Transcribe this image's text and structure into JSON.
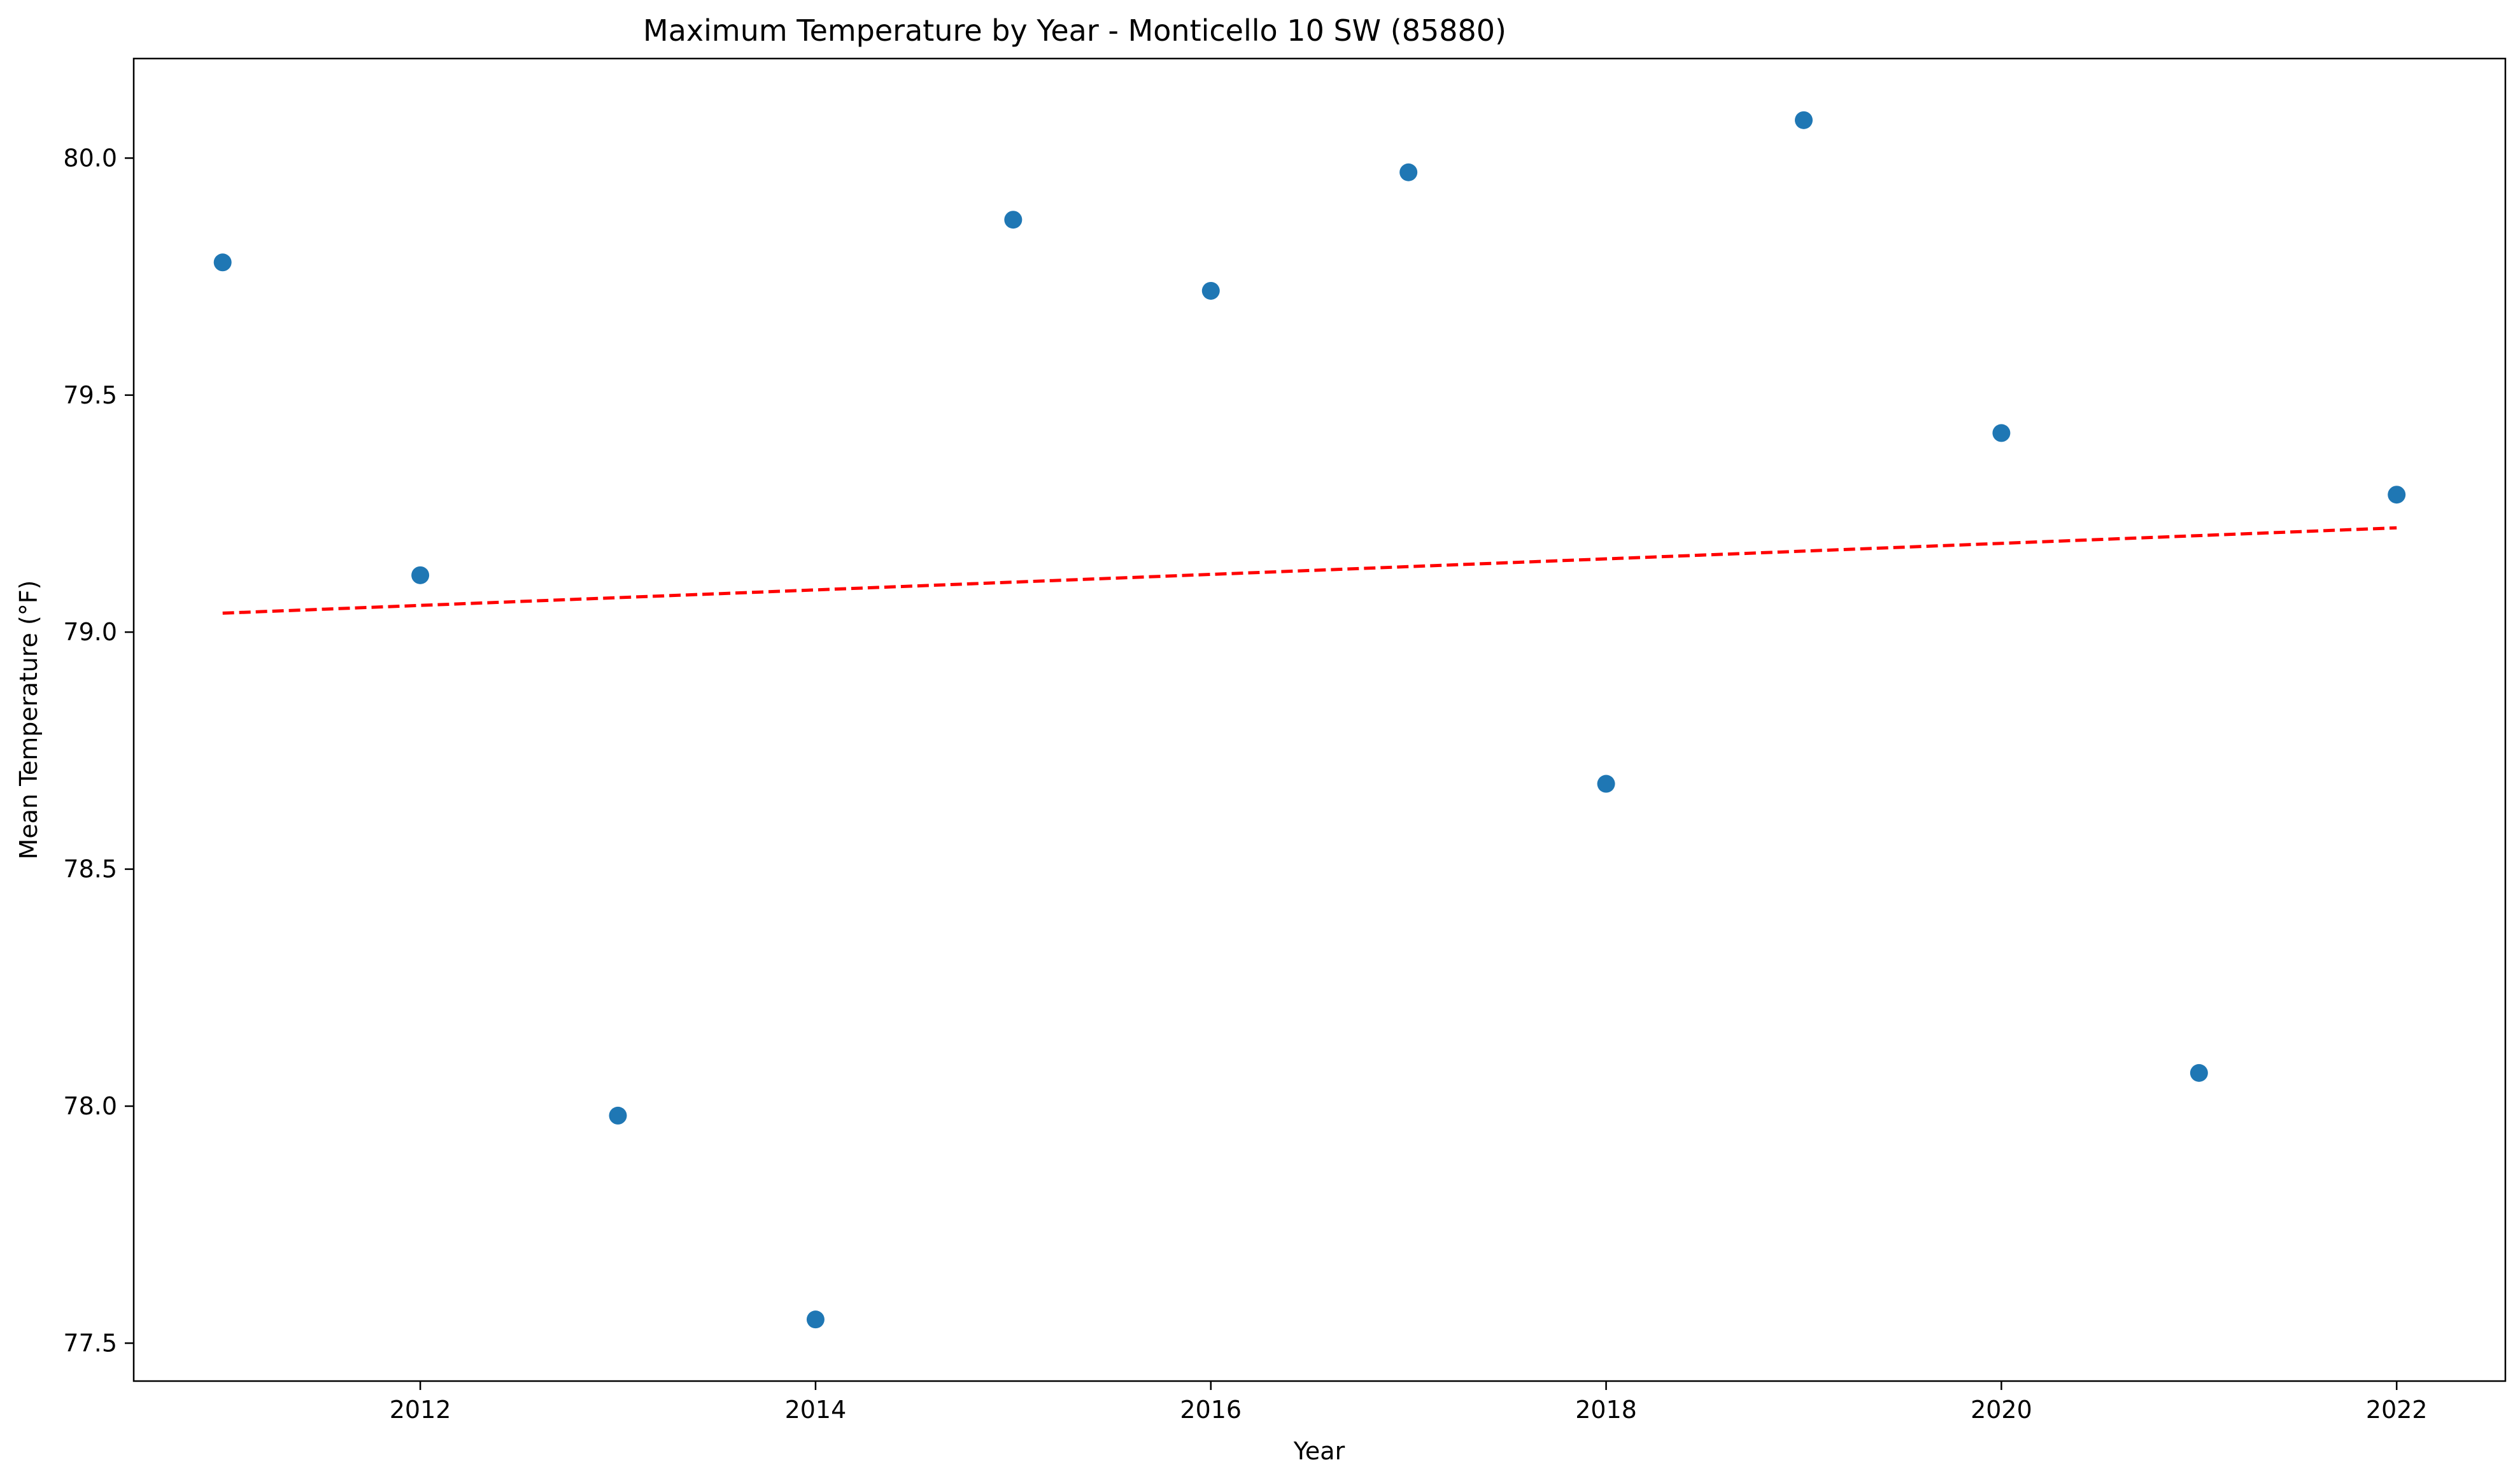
{
  "chart_data": {
    "type": "scatter",
    "title": "Maximum Temperature by Year - Monticello 10 SW (85880)",
    "xlabel": "Year",
    "ylabel": "Mean Temperature (°F)",
    "xlim": [
      2010.55,
      2022.55
    ],
    "ylim": [
      77.42,
      80.21
    ],
    "xticks": [
      2012,
      2014,
      2016,
      2018,
      2020,
      2022
    ],
    "xtick_labels": [
      "2012",
      "2014",
      "2016",
      "2018",
      "2020",
      "2022"
    ],
    "yticks": [
      77.5,
      78.0,
      78.5,
      79.0,
      79.5,
      80.0
    ],
    "ytick_labels": [
      "77.5",
      "78.0",
      "78.5",
      "79.0",
      "79.5",
      "80.0"
    ],
    "grid": false,
    "series": [
      {
        "type": "scatter",
        "color": "#1f77b4",
        "x": [
          2011,
          2012,
          2013,
          2014,
          2015,
          2016,
          2017,
          2018,
          2019,
          2020,
          2021,
          2022
        ],
        "y": [
          79.78,
          79.12,
          77.98,
          77.55,
          79.87,
          79.72,
          79.97,
          78.68,
          80.08,
          79.42,
          78.07,
          79.29
        ]
      },
      {
        "type": "line",
        "style": "dashed",
        "color": "#ff0000",
        "x": [
          2011,
          2022
        ],
        "y": [
          79.04,
          79.22
        ]
      }
    ]
  }
}
